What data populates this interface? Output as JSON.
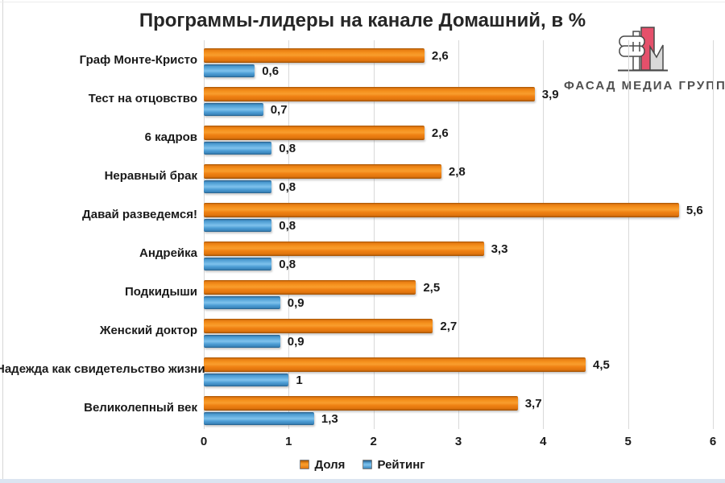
{
  "title": "Программы-лидеры на канале Домашний, в %",
  "logo": {
    "text": "ФАСАД МЕДИА ГРУПП",
    "accent_color": "#e5506b",
    "outline_color": "#4a4a4a",
    "gray_fill": "#d9d9d9"
  },
  "chart_data": {
    "type": "bar",
    "orientation": "horizontal",
    "title": "Программы-лидеры на канале Домашний, в %",
    "categories": [
      "Граф Монте-Кристо",
      "Тест на отцовство",
      "6 кадров",
      "Неравный брак",
      "Давай разведемся!",
      "Андрейка",
      "Подкидыши",
      "Женский доктор",
      "Надежда как свидетельство жизни",
      "Великолепный век"
    ],
    "series": [
      {
        "name": "Доля",
        "color": "#F08214",
        "values": [
          2.6,
          3.9,
          2.6,
          2.8,
          5.6,
          3.3,
          2.5,
          2.7,
          4.5,
          3.7
        ],
        "labels": [
          "2,6",
          "3,9",
          "2,6",
          "2,8",
          "5,6",
          "3,3",
          "2,5",
          "2,7",
          "4,5",
          "3,7"
        ]
      },
      {
        "name": "Рейтинг",
        "color": "#4F9FD6",
        "values": [
          0.6,
          0.7,
          0.8,
          0.8,
          0.8,
          0.8,
          0.9,
          0.9,
          1.0,
          1.3
        ],
        "labels": [
          "0,6",
          "0,7",
          "0,8",
          "0,8",
          "0,8",
          "0,8",
          "0,9",
          "0,9",
          "1",
          "1,3"
        ]
      }
    ],
    "xlim": [
      0,
      6
    ],
    "xticks": [
      "0",
      "1",
      "2",
      "3",
      "4",
      "5",
      "6"
    ],
    "grid": "vertical",
    "gridline_color": "#d9d9d9",
    "legend_position": "bottom"
  }
}
